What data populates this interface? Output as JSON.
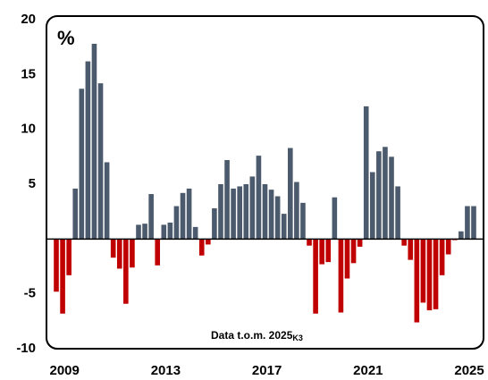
{
  "chart_data": {
    "type": "bar",
    "unit_label": "%",
    "annotation": "Data t.o.m. 2025",
    "annotation_subscript": "K3",
    "categories": [
      "2009",
      null,
      null,
      null,
      null,
      null,
      null,
      null,
      null,
      null,
      null,
      null,
      null,
      null,
      null,
      null,
      "2013",
      null,
      null,
      null,
      null,
      null,
      null,
      null,
      null,
      null,
      null,
      null,
      null,
      null,
      null,
      null,
      "2017",
      null,
      null,
      null,
      null,
      null,
      null,
      null,
      null,
      null,
      null,
      null,
      null,
      null,
      null,
      null,
      "2021",
      null,
      null,
      null,
      null,
      null,
      null,
      null,
      null,
      null,
      null,
      null,
      null,
      null,
      null,
      null,
      "2025",
      null,
      null
    ],
    "values": [
      -4.8,
      -6.8,
      -3.3,
      4.6,
      13.7,
      16.2,
      17.8,
      14.2,
      7.0,
      -1.7,
      -2.7,
      -5.9,
      -2.6,
      1.3,
      1.4,
      4.1,
      -2.4,
      1.3,
      1.5,
      3.0,
      4.2,
      4.6,
      1.1,
      -1.5,
      -0.5,
      2.8,
      5.0,
      7.2,
      4.6,
      4.8,
      5.0,
      5.7,
      7.6,
      5.0,
      4.5,
      3.9,
      2.3,
      8.3,
      5.2,
      3.3,
      -0.6,
      -6.8,
      -2.3,
      -2.1,
      3.8,
      -6.7,
      -3.6,
      -2.2,
      -0.7,
      12.1,
      6.1,
      8.0,
      8.4,
      7.5,
      4.8,
      -0.6,
      -1.9,
      -7.6,
      -5.8,
      -6.5,
      -6.4,
      -3.3,
      -1.4,
      -0.1,
      0.7,
      3.0,
      3.0
    ],
    "positive_color": "#4b5a6c",
    "negative_color": "#c00000",
    "ylim": [
      -10,
      20
    ],
    "yticks": [
      -10,
      -5,
      5,
      10,
      15,
      20
    ],
    "grid": false
  }
}
